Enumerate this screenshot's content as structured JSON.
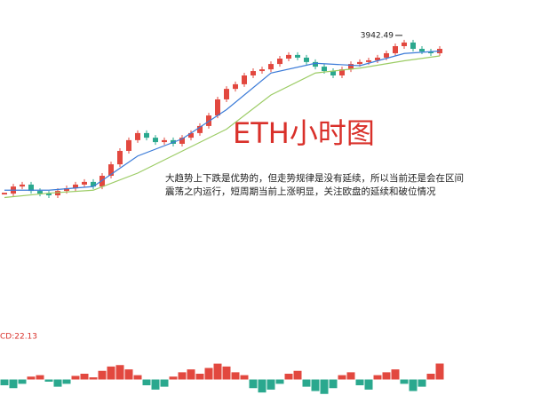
{
  "chart_data": {
    "type": "candlestick",
    "title": "ETH小时图",
    "annotation": [
      "大趋势上下跌是优势的，但走势规律是没有延续，所以当前还是会在区间",
      "震荡之内运行，短周期当前上涨明显，关注欧盘的延续和破位情况"
    ],
    "peak_label": "3942.49",
    "peak_index": 45,
    "ylim": [
      3200,
      4000
    ],
    "up_color": "#e2483f",
    "down_color": "#2aa88e",
    "values": [
      3316,
      3345,
      3353,
      3327,
      3316,
      3309,
      3327,
      3338,
      3353,
      3364,
      3345,
      3389,
      3436,
      3491,
      3535,
      3564,
      3545,
      3527,
      3535,
      3520,
      3545,
      3564,
      3593,
      3636,
      3702,
      3745,
      3764,
      3800,
      3818,
      3825,
      3847,
      3869,
      3884,
      3873,
      3855,
      3836,
      3818,
      3800,
      3825,
      3847,
      3855,
      3862,
      3873,
      3891,
      3920,
      3935,
      3909,
      3898,
      3891,
      3909
    ],
    "series": [
      {
        "color": "#3b7bd8",
        "x": [
          0,
          5,
          10,
          15,
          20,
          25,
          30,
          35,
          40,
          45,
          49
        ],
        "values": [
          3330,
          3330,
          3345,
          3470,
          3540,
          3660,
          3810,
          3850,
          3840,
          3890,
          3900
        ]
      },
      {
        "color": "#9ccc65",
        "x": [
          0,
          5,
          10,
          15,
          20,
          25,
          30,
          35,
          40,
          45,
          49
        ],
        "values": [
          3300,
          3318,
          3330,
          3400,
          3490,
          3580,
          3720,
          3810,
          3830,
          3860,
          3880
        ]
      }
    ],
    "macd": {
      "label": "CD:22.13",
      "ylim": [
        -40,
        40
      ],
      "values": [
        -8,
        -12,
        -6,
        4,
        6,
        -3,
        -10,
        -6,
        5,
        8,
        3,
        12,
        18,
        20,
        14,
        6,
        -8,
        -14,
        -10,
        4,
        10,
        14,
        8,
        16,
        22,
        18,
        10,
        6,
        -12,
        -18,
        -14,
        -6,
        8,
        12,
        -10,
        -16,
        -20,
        -12,
        6,
        10,
        -8,
        -14,
        6,
        10,
        14,
        -6,
        -16,
        -10,
        8,
        22.13
      ]
    }
  }
}
